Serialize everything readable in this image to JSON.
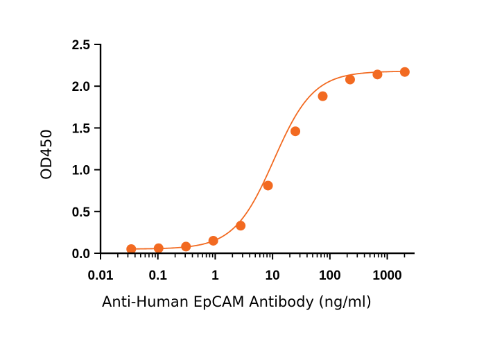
{
  "chart_data": {
    "type": "scatter",
    "title": "",
    "xlabel": "Anti-Human EpCAM Antibody (ng/ml)",
    "ylabel": "OD450",
    "x_scale": "log",
    "xlim": [
      0.01,
      3000
    ],
    "ylim": [
      0,
      2.5
    ],
    "x_ticks": [
      0.01,
      0.1,
      1,
      10,
      100,
      1000
    ],
    "x_tick_labels": [
      "0.01",
      "0.1",
      "1",
      "10",
      "100",
      "1000"
    ],
    "y_ticks": [
      0,
      0.5,
      1,
      1.5,
      2,
      2.5
    ],
    "y_tick_labels": [
      "0.0",
      "0.5",
      "1.0",
      "1.5",
      "2.0",
      "2.5"
    ],
    "grid": false,
    "legend": "none",
    "series": [
      {
        "x": [
          0.0343,
          0.103,
          0.309,
          0.926,
          2.78,
          8.33,
          25,
          75,
          225,
          675,
          2025
        ],
        "y": [
          0.05,
          0.06,
          0.08,
          0.15,
          0.33,
          0.81,
          1.46,
          1.88,
          2.08,
          2.14,
          2.17
        ]
      }
    ],
    "fit_curve": {
      "model": "four-parameter logistic",
      "bottom": 0.05,
      "top": 2.18,
      "ec50": 10.5,
      "hill_slope": 1.25
    },
    "marker_color": "#f26a21",
    "line_color": "#f26a21"
  }
}
